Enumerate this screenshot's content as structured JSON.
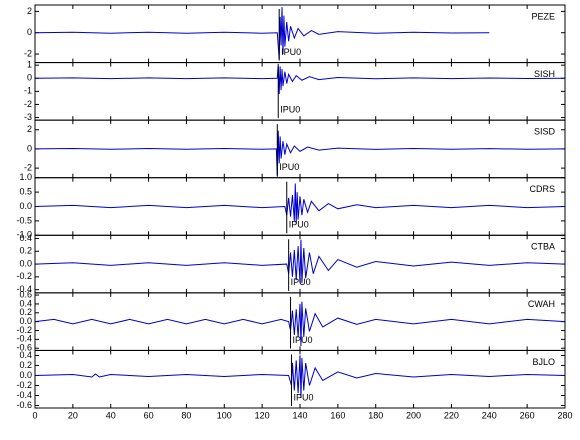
{
  "chart_data": [
    {
      "type": "line",
      "title": "PEZE",
      "xlim": [
        0,
        280
      ],
      "ylim": [
        -2.8,
        2.6
      ],
      "yticks": [
        2,
        0,
        -2
      ],
      "pick": {
        "x": 129,
        "label": "IPU0"
      },
      "series": [
        {
          "color": "#0000cc",
          "x": [
            0,
            20,
            40,
            60,
            80,
            100,
            120,
            128,
            129,
            129.5,
            130,
            130.5,
            131,
            131.5,
            132,
            133,
            134,
            135,
            137,
            139,
            142,
            146,
            150,
            160,
            180,
            200,
            220,
            240
          ],
          "values": [
            0,
            0.05,
            -0.05,
            0.05,
            -0.05,
            0.05,
            -0.05,
            0,
            -2.5,
            1.5,
            -1.2,
            2.4,
            -2,
            1.6,
            -1.3,
            1,
            -0.8,
            0.6,
            -0.5,
            0.4,
            -0.3,
            0.2,
            -0.15,
            0.1,
            -0.05,
            0.05,
            -0.03,
            0
          ]
        }
      ]
    },
    {
      "type": "line",
      "title": "SISH",
      "xlim": [
        0,
        280
      ],
      "ylim": [
        -3.2,
        1.2
      ],
      "yticks": [
        1,
        0,
        -1,
        -2,
        -3
      ],
      "pick": {
        "x": 128.5,
        "label": "IPU0"
      },
      "series": [
        {
          "color": "#0000cc",
          "x": [
            0,
            20,
            40,
            60,
            80,
            100,
            120,
            128,
            128.5,
            129,
            129.5,
            130,
            130.5,
            131,
            132,
            133,
            134,
            136,
            138,
            141,
            145,
            150,
            160,
            180,
            200,
            220,
            240,
            260,
            280
          ],
          "values": [
            0,
            0.03,
            -0.03,
            0.03,
            -0.03,
            0.03,
            -0.03,
            0,
            1.1,
            -1.2,
            0.9,
            -0.9,
            0.7,
            -0.6,
            0.5,
            -0.4,
            0.3,
            -0.25,
            0.2,
            -0.15,
            0.12,
            -0.1,
            0.06,
            -0.04,
            0.03,
            -0.03,
            0.02,
            -0.02,
            0
          ]
        }
      ]
    },
    {
      "type": "line",
      "title": "SISD",
      "xlim": [
        0,
        280
      ],
      "ylim": [
        -3,
        3
      ],
      "yticks": [
        2,
        0,
        -2
      ],
      "pick": {
        "x": 128,
        "label": "IPU0"
      },
      "series": [
        {
          "color": "#0000cc",
          "x": [
            0,
            20,
            40,
            60,
            80,
            100,
            120,
            127.5,
            128,
            128.5,
            129,
            129.5,
            130,
            131,
            132,
            133,
            135,
            137,
            140,
            144,
            150,
            160,
            180,
            200,
            220,
            240,
            260,
            280
          ],
          "values": [
            0,
            0.04,
            -0.04,
            0.04,
            -0.04,
            0.04,
            -0.04,
            0,
            -2.9,
            1.9,
            -1.5,
            1.3,
            -1,
            0.8,
            -0.6,
            0.5,
            -0.4,
            0.3,
            -0.25,
            0.2,
            -0.12,
            0.08,
            -0.05,
            0.04,
            -0.04,
            0.03,
            -0.03,
            0
          ]
        }
      ]
    },
    {
      "type": "line",
      "title": "CDRS",
      "xlim": [
        0,
        280
      ],
      "ylim": [
        -1,
        1
      ],
      "yticks": [
        {
          "value": 1,
          "label": "1.0"
        },
        0.5,
        {
          "value": 0,
          "label": "0.0"
        },
        -0.5,
        {
          "value": -1,
          "label": "-1.0"
        }
      ],
      "pick": {
        "x": 133,
        "label": "IPU0"
      },
      "series": [
        {
          "color": "#0000cc",
          "x": [
            0,
            20,
            40,
            60,
            80,
            100,
            120,
            132,
            133,
            134,
            135,
            136,
            137,
            137.5,
            138,
            138.5,
            139,
            140,
            141,
            142,
            144,
            146,
            150,
            155,
            160,
            170,
            180,
            200,
            220,
            240,
            260,
            280
          ],
          "values": [
            0,
            0.04,
            -0.04,
            0.04,
            -0.04,
            0.04,
            -0.04,
            0,
            -0.3,
            0.3,
            -0.35,
            0.4,
            -0.5,
            0.8,
            -0.6,
            0.5,
            -0.45,
            0.35,
            -0.3,
            0.25,
            -0.2,
            0.18,
            -0.15,
            0.1,
            -0.08,
            0.06,
            -0.04,
            0.04,
            -0.04,
            0.04,
            -0.04,
            0
          ]
        }
      ]
    },
    {
      "type": "line",
      "title": "CTBA",
      "xlim": [
        0,
        280
      ],
      "ylim": [
        -0.45,
        0.45
      ],
      "yticks": [
        0.4,
        0.2,
        {
          "value": 0,
          "label": "0.0"
        },
        -0.2,
        -0.4
      ],
      "pick": {
        "x": 134,
        "label": "IPU0"
      },
      "series": [
        {
          "color": "#0000cc",
          "x": [
            0,
            20,
            40,
            60,
            80,
            100,
            120,
            133,
            134,
            135,
            136,
            137,
            138,
            139,
            140,
            140.5,
            141,
            142,
            143,
            145,
            147,
            150,
            155,
            160,
            170,
            180,
            200,
            220,
            240,
            260,
            280
          ],
          "values": [
            0,
            0.02,
            -0.02,
            0.02,
            -0.02,
            0.02,
            -0.02,
            0,
            -0.15,
            0.18,
            -0.2,
            0.22,
            -0.25,
            0.28,
            -0.3,
            0.38,
            -0.3,
            0.25,
            -0.22,
            0.18,
            -0.15,
            0.12,
            -0.1,
            0.07,
            -0.05,
            0.04,
            -0.03,
            0.03,
            -0.02,
            0.02,
            0
          ]
        }
      ]
    },
    {
      "type": "line",
      "title": "CWAH",
      "xlim": [
        0,
        280
      ],
      "ylim": [
        -0.65,
        0.65
      ],
      "yticks": [
        0.6,
        0.4,
        0.2,
        {
          "value": 0,
          "label": "0.0"
        },
        -0.2,
        -0.4,
        -0.6
      ],
      "pick": {
        "x": 135,
        "label": "IPU0"
      },
      "series": [
        {
          "color": "#0000cc",
          "x": [
            0,
            10,
            20,
            30,
            40,
            50,
            60,
            70,
            80,
            90,
            100,
            110,
            120,
            130,
            134,
            135,
            136,
            137,
            138,
            139,
            140,
            140.5,
            141,
            142,
            143,
            145,
            148,
            152,
            160,
            170,
            180,
            200,
            220,
            240,
            260,
            280
          ],
          "values": [
            0,
            0.05,
            -0.05,
            0.05,
            -0.05,
            0.05,
            -0.05,
            0.05,
            -0.05,
            0.05,
            -0.05,
            0.05,
            -0.05,
            0.05,
            0,
            -0.2,
            0.25,
            -0.3,
            0.28,
            -0.35,
            0.4,
            -0.55,
            0.45,
            -0.35,
            0.3,
            -0.22,
            0.18,
            -0.12,
            0.08,
            -0.06,
            0.05,
            -0.05,
            0.05,
            -0.05,
            0.05,
            0
          ]
        }
      ]
    },
    {
      "type": "line",
      "title": "BJLO",
      "xlim": [
        0,
        280
      ],
      "ylim": [
        -0.65,
        0.5
      ],
      "yticks": [
        0.4,
        0.2,
        {
          "value": 0,
          "label": "0.0"
        },
        -0.2,
        -0.4,
        -0.6
      ],
      "pick": {
        "x": 135.5,
        "label": "IPU0"
      },
      "xticks": [
        0,
        20,
        40,
        60,
        80,
        100,
        120,
        140,
        160,
        180,
        200,
        220,
        240,
        260,
        280
      ],
      "series": [
        {
          "color": "#0000cc",
          "x": [
            0,
            20,
            30,
            32,
            34,
            40,
            60,
            80,
            100,
            120,
            134,
            135.5,
            136,
            137,
            138,
            139,
            140,
            140.5,
            141,
            142,
            143,
            145,
            148,
            152,
            160,
            170,
            180,
            200,
            220,
            240,
            260,
            280
          ],
          "values": [
            0,
            0.02,
            -0.03,
            0.03,
            -0.03,
            0.02,
            -0.02,
            0.02,
            -0.02,
            0.02,
            0,
            -0.2,
            0.25,
            -0.3,
            0.3,
            -0.35,
            0.4,
            -0.45,
            0.35,
            -0.3,
            0.25,
            -0.2,
            0.15,
            -0.1,
            0.07,
            -0.05,
            0.04,
            -0.03,
            0.02,
            -0.02,
            0.02,
            0
          ]
        }
      ]
    }
  ]
}
